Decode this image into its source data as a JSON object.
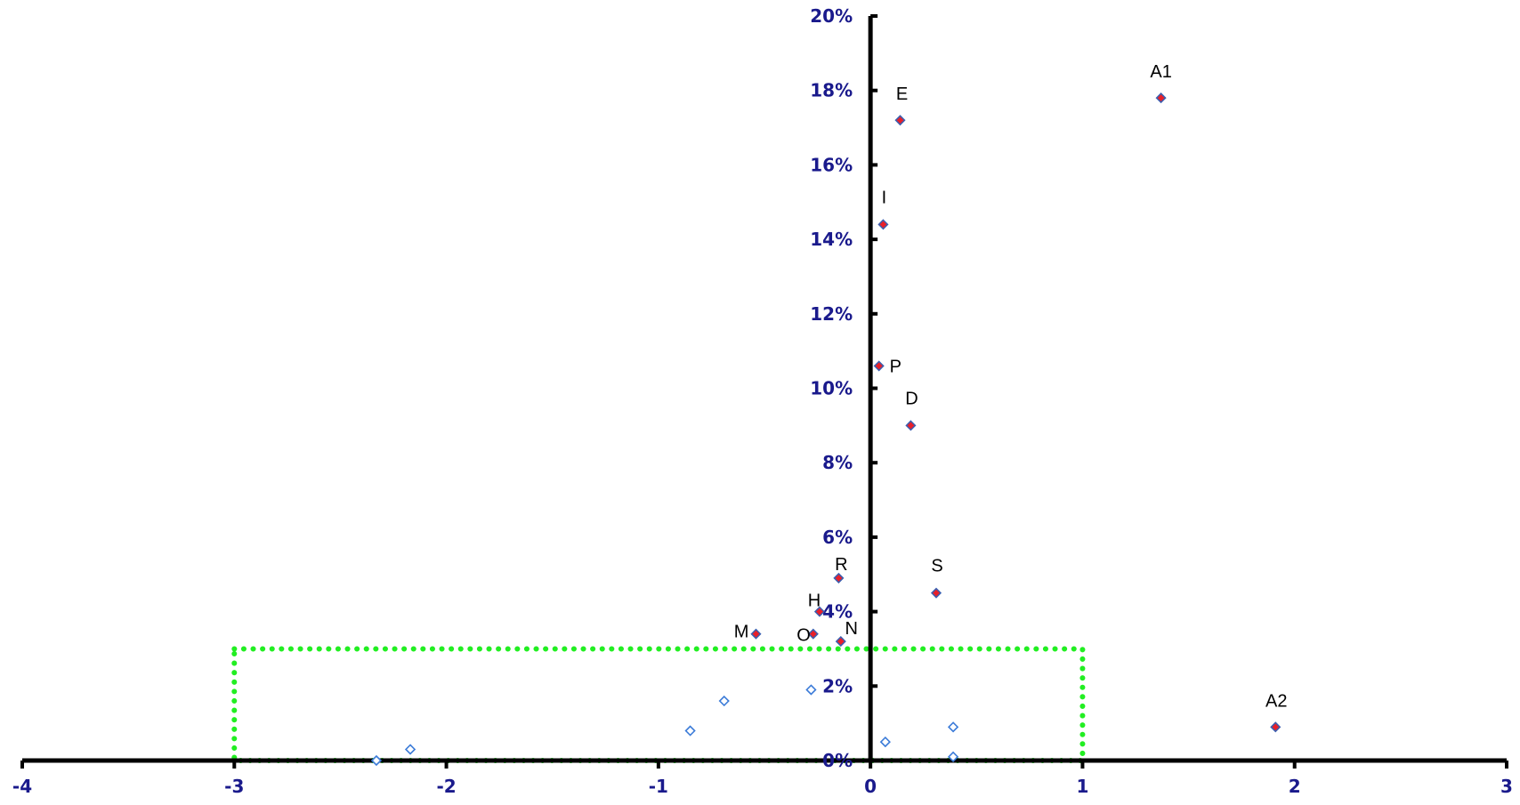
{
  "chart_data": {
    "type": "scatter",
    "xlim": [
      -4,
      3
    ],
    "ylim": [
      0,
      20
    ],
    "x_ticks": [
      -4,
      -3,
      -2,
      -1,
      0,
      1,
      2,
      3
    ],
    "y_ticks": [
      0,
      2,
      4,
      6,
      8,
      10,
      12,
      14,
      16,
      18,
      20
    ],
    "y_tick_suffix": "%",
    "grid": false,
    "legend": "none",
    "series": [
      {
        "style": "filled",
        "color": "#e8202a",
        "edge_color": "#3b5fb0",
        "points": [
          {
            "label": "A1",
            "x": 1.37,
            "y": 17.8
          },
          {
            "label": "E",
            "x": 0.14,
            "y": 17.2
          },
          {
            "label": "I",
            "x": 0.06,
            "y": 14.4
          },
          {
            "label": "P",
            "x": 0.04,
            "y": 10.6
          },
          {
            "label": "D",
            "x": 0.19,
            "y": 9.0
          },
          {
            "label": "R",
            "x": -0.15,
            "y": 4.9
          },
          {
            "label": "S",
            "x": 0.31,
            "y": 4.5
          },
          {
            "label": "H",
            "x": -0.24,
            "y": 4.0
          },
          {
            "label": "M",
            "x": -0.54,
            "y": 3.4
          },
          {
            "label": "O",
            "x": -0.27,
            "y": 3.4
          },
          {
            "label": "N",
            "x": -0.14,
            "y": 3.2
          },
          {
            "label": "A2",
            "x": 1.91,
            "y": 0.9
          }
        ]
      },
      {
        "style": "hollow",
        "color": "#ffffff",
        "edge_color": "#3b7bd8",
        "points": [
          {
            "x": -2.33,
            "y": 0.0
          },
          {
            "x": -2.17,
            "y": 0.3
          },
          {
            "x": -0.85,
            "y": 0.8
          },
          {
            "x": -0.69,
            "y": 1.6
          },
          {
            "x": -0.28,
            "y": 1.9
          },
          {
            "x": 0.07,
            "y": 0.5
          },
          {
            "x": 0.39,
            "y": 0.9
          },
          {
            "x": 0.39,
            "y": 0.1
          }
        ]
      }
    ],
    "highlight_box": {
      "x": [
        -3,
        1
      ],
      "y": [
        0,
        3
      ],
      "style": "dotted",
      "color": "#22ee22"
    }
  }
}
